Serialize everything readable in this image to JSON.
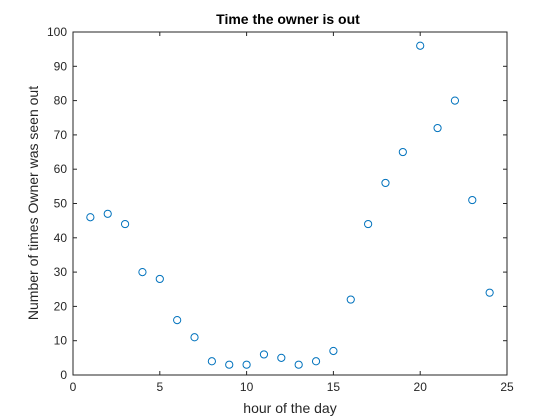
{
  "chart_data": {
    "type": "scatter",
    "title": "Time the owner is out",
    "xlabel": "hour of the day",
    "ylabel": "Number of times Owner was seen out",
    "xlim": [
      0,
      25
    ],
    "ylim": [
      0,
      100
    ],
    "xticks": [
      "0",
      "5",
      "10",
      "15",
      "20",
      "25"
    ],
    "yticks": [
      "0",
      "10",
      "20",
      "30",
      "40",
      "50",
      "60",
      "70",
      "80",
      "90",
      "100"
    ],
    "marker": "open-circle",
    "marker_color": "#0072BD",
    "axis_color": "#262626",
    "grid": false,
    "x": [
      1,
      2,
      3,
      4,
      5,
      6,
      7,
      8,
      9,
      10,
      11,
      12,
      13,
      14,
      15,
      16,
      17,
      18,
      19,
      20,
      21,
      22,
      23,
      24
    ],
    "y": [
      46,
      47,
      44,
      30,
      28,
      16,
      11,
      4,
      3,
      3,
      6,
      5,
      3,
      4,
      7,
      22,
      44,
      56,
      65,
      96,
      72,
      80,
      51,
      24
    ]
  }
}
